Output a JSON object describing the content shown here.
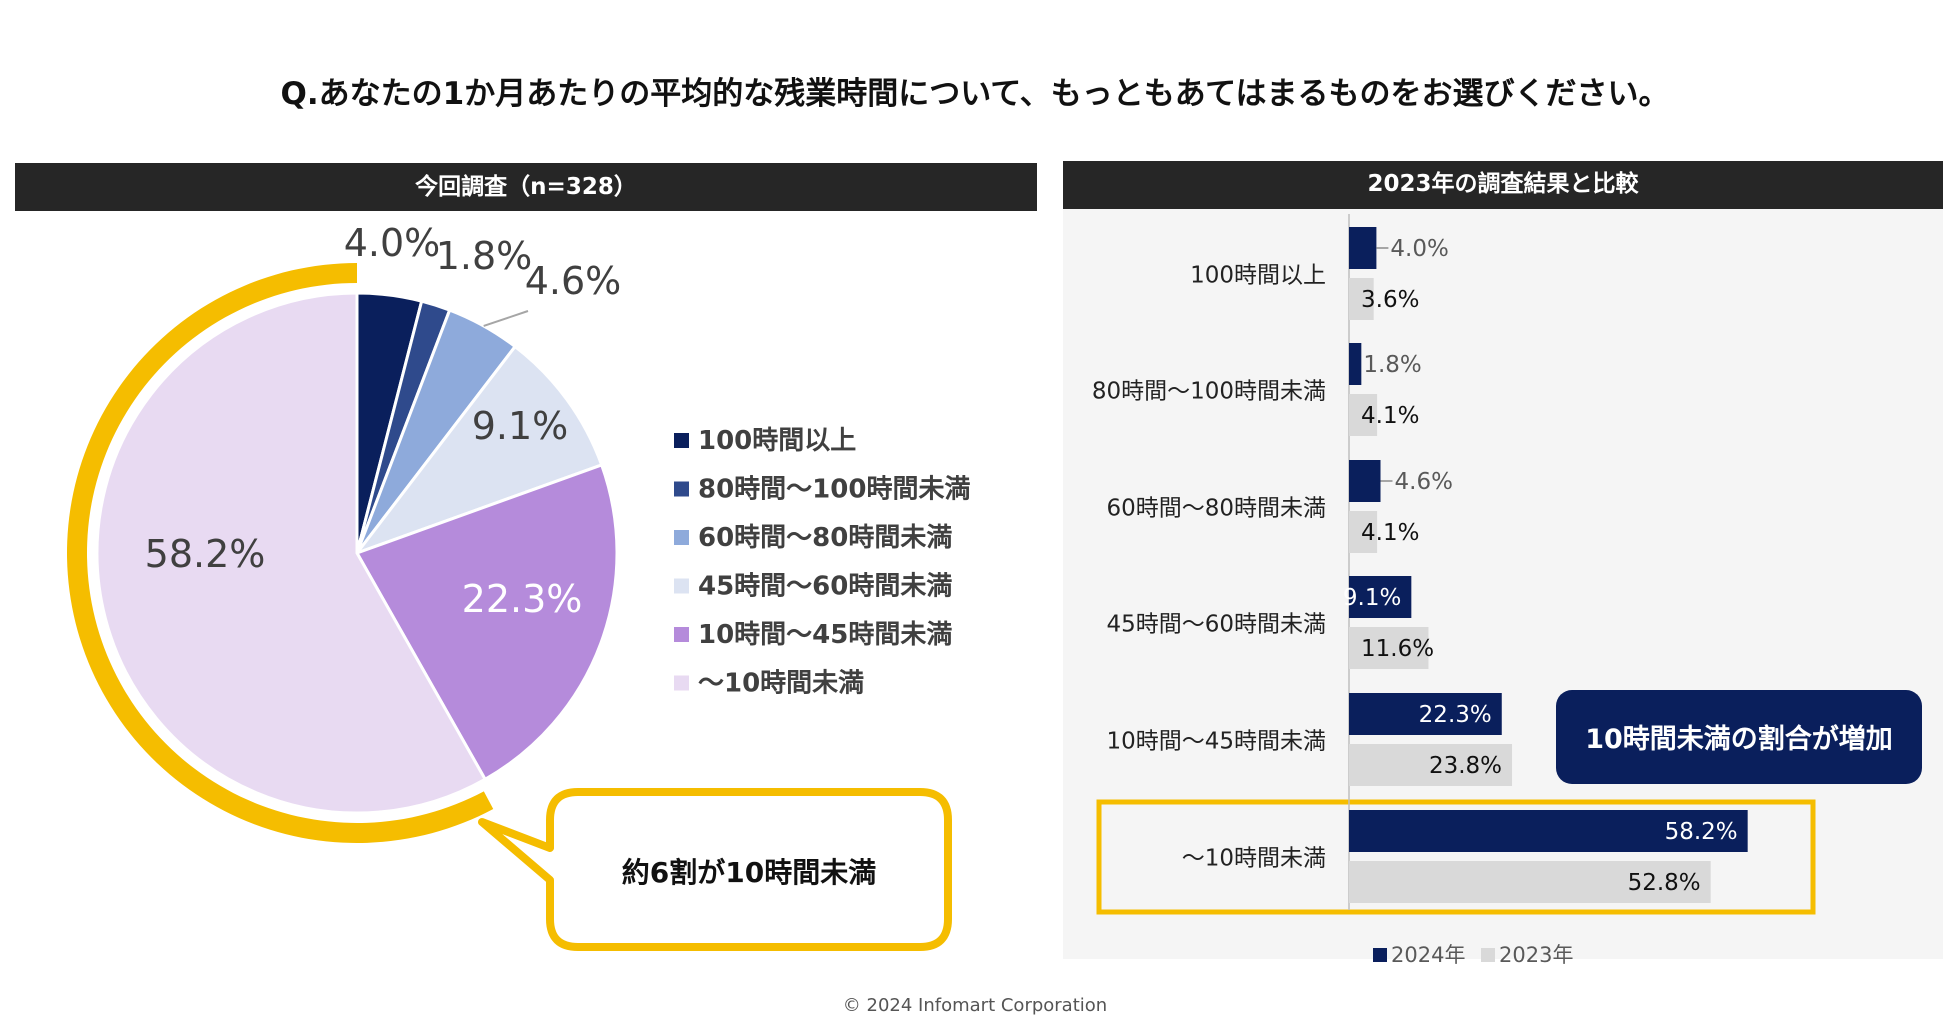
{
  "title": "Q.あなたの1か月あたりの平均的な残業時間について、もっともあてはまるものをお選びください。",
  "footer": "© 2024 Infomart Corporation",
  "colors": {
    "navy": "#0a1f5c",
    "blue2": "#2f4a8c",
    "blue3": "#8eaadb",
    "blue4": "#dce3f2",
    "purple": "#b58bdb",
    "lavender": "#e8daf2",
    "gray": "#d9d9d9",
    "yellow": "#f5bd00"
  },
  "chart_data": [
    {
      "type": "pie",
      "title": "今回調査（n=328）",
      "categories": [
        "100時間以上",
        "80時間〜100時間未満",
        "60時間〜80時間未満",
        "45時間〜60時間未満",
        "10時間〜45時間未満",
        "〜10時間未満"
      ],
      "values": [
        4.0,
        1.8,
        4.6,
        9.1,
        22.3,
        58.2
      ],
      "value_labels": [
        "4.0%",
        "1.8%",
        "4.6%",
        "9.1%",
        "22.3%",
        "58.2%"
      ],
      "legend_position": "right",
      "callout": "約6割が10時間未満"
    },
    {
      "type": "bar",
      "orientation": "horizontal",
      "title": "2023年の調査結果と比較",
      "categories": [
        "100時間以上",
        "80時間〜100時間未満",
        "60時間〜80時間未満",
        "45時間〜60時間未満",
        "10時間〜45時間未満",
        "〜10時間未満"
      ],
      "series": [
        {
          "name": "2024年",
          "values": [
            4.0,
            1.8,
            4.6,
            9.1,
            22.3,
            58.2
          ],
          "labels": [
            "4.0%",
            "1.8%",
            "4.6%",
            "9.1%",
            "22.3%",
            "58.2%"
          ]
        },
        {
          "name": "2023年",
          "values": [
            3.6,
            4.1,
            4.1,
            11.6,
            23.8,
            52.8
          ],
          "labels": [
            "3.6%",
            "4.1%",
            "4.1%",
            "11.6%",
            "23.8%",
            "52.8%"
          ]
        }
      ],
      "xlim": [
        0,
        100
      ],
      "legend_position": "bottom",
      "callout": "10時間未満の割合が増加",
      "highlight_category": "〜10時間未満"
    }
  ]
}
